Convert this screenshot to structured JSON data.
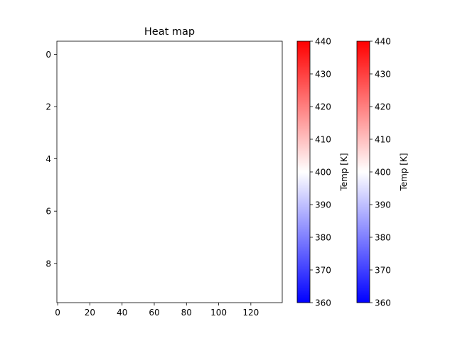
{
  "chart_data": {
    "type": "heatmap",
    "title": "Heat map",
    "xlabel": "",
    "ylabel": "",
    "x_ticks": [
      0,
      20,
      40,
      60,
      80,
      100,
      120
    ],
    "y_ticks": [
      0,
      2,
      4,
      6,
      8
    ],
    "xlim": [
      -0.5,
      139.5
    ],
    "ylim": [
      9.5,
      -0.5
    ],
    "values": [],
    "colorbars": [
      {
        "label": "Temp [K]",
        "range": [
          360,
          440
        ],
        "ticks": [
          360,
          370,
          380,
          390,
          400,
          410,
          420,
          430,
          440
        ],
        "colormap": [
          "#0000ff",
          "#ffffff",
          "#ff0000"
        ]
      },
      {
        "label": "Temp [K]",
        "range": [
          360,
          440
        ],
        "ticks": [
          360,
          370,
          380,
          390,
          400,
          410,
          420,
          430,
          440
        ],
        "colormap": [
          "#0000ff",
          "#ffffff",
          "#ff0000"
        ]
      }
    ]
  }
}
